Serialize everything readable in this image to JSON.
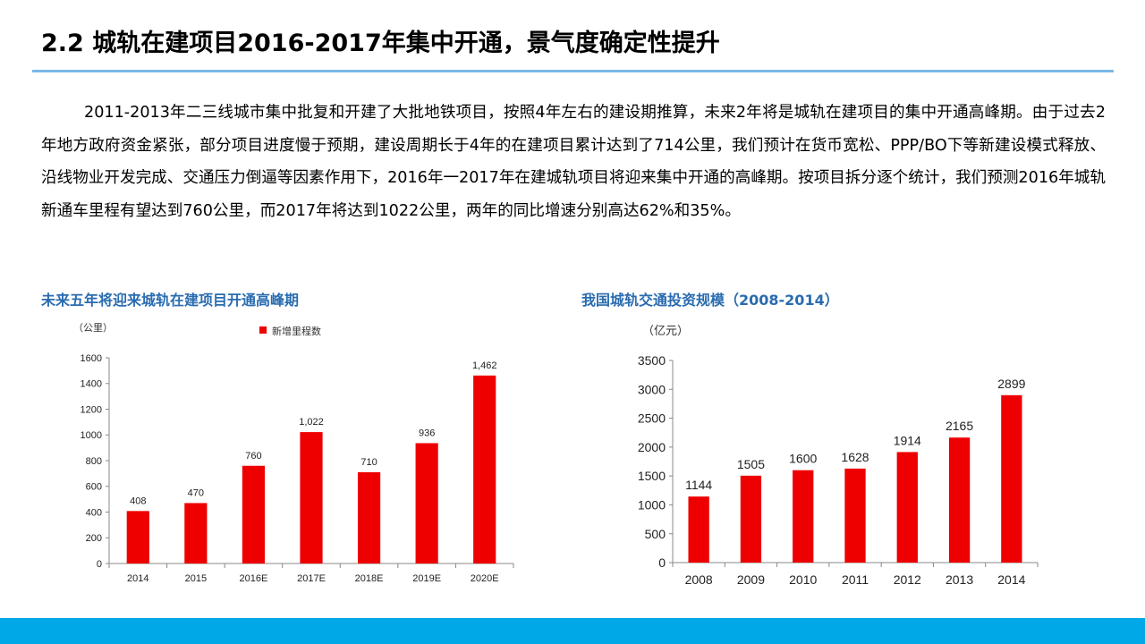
{
  "slide": {
    "title": "2.2 城轨在建项目2016-2017年集中开通，景气度确定性提升",
    "paragraph": "2011-2013年二三线城市集中批复和开建了大批地铁项目，按照4年左右的建设期推算，未来2年将是城轨在建项目的集中开通高峰期。由于过去2年地方政府资金紧张，部分项目进度慢于预期，建设周期长于4年的在建项目累计达到了714公里，我们预计在货币宽松、PPP/BO下等新建设模式释放、沿线物业开发完成、交通压力倒逼等因素作用下，2016年一2017年在建城轨项目将迎来集中开通的高峰期。按项目拆分逐个统计，我们预测2016年城轨新通车里程有望达到760公里，而2017年将达到1022公里，两年的同比增速分别高达62%和35%。",
    "accent_color": "#00a8e8",
    "rule_color": "#7ab8e8"
  },
  "chart_data": [
    {
      "type": "bar",
      "title": "未来五年将迎来城轨在建项目开通高峰期",
      "unit_label": "（公里）",
      "legend": "新增里程数",
      "legend_position": "top",
      "categories": [
        "2014",
        "2015",
        "2016E",
        "2017E",
        "2018E",
        "2019E",
        "2020E"
      ],
      "values": [
        408,
        470,
        760,
        1022,
        710,
        936,
        1462
      ],
      "value_labels": [
        "408",
        "470",
        "760",
        "1,022",
        "710",
        "936",
        "1,462"
      ],
      "ylim": [
        0,
        1600
      ],
      "yticks": [
        0,
        200,
        400,
        600,
        800,
        1000,
        1200,
        1400,
        1600
      ],
      "bar_color": "#ee0000",
      "grid": false
    },
    {
      "type": "bar",
      "title": "我国城轨交通投资规模（2008-2014）",
      "unit_label": "（亿元）",
      "categories": [
        "2008",
        "2009",
        "2010",
        "2011",
        "2012",
        "2013",
        "2014"
      ],
      "values": [
        1144,
        1505,
        1600,
        1628,
        1914,
        2165,
        2899
      ],
      "value_labels": [
        "1144",
        "1505",
        "1600",
        "1628",
        "1914",
        "2165",
        "2899"
      ],
      "ylim": [
        0,
        3500
      ],
      "yticks": [
        0,
        500,
        1000,
        1500,
        2000,
        2500,
        3000,
        3500
      ],
      "bar_color": "#ee0000",
      "grid": false
    }
  ]
}
